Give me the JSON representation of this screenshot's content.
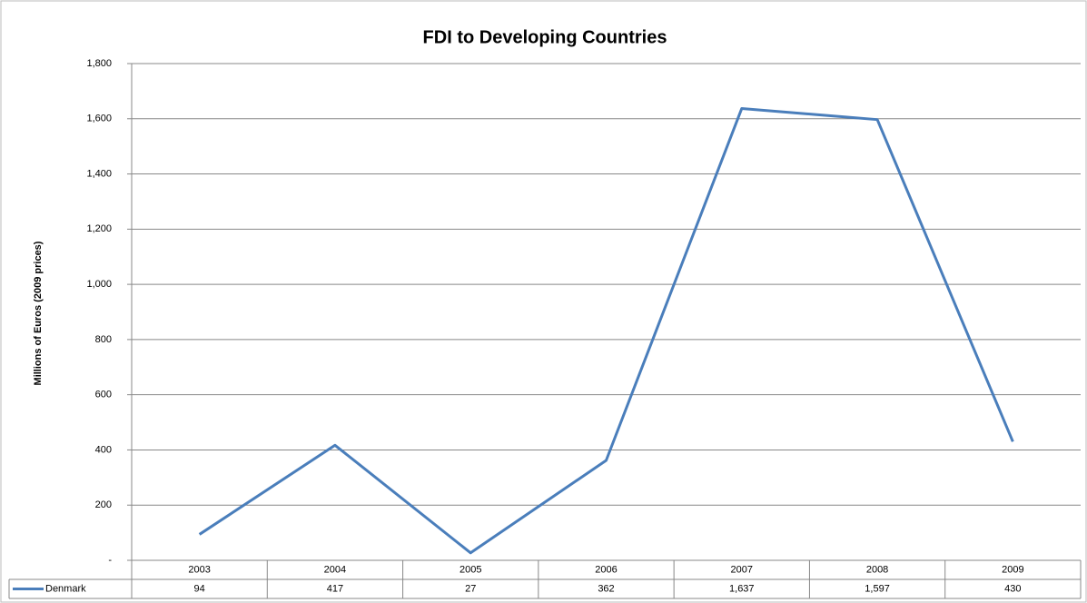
{
  "chart_data": {
    "type": "line",
    "title": "FDI to Developing Countries",
    "y_label": "Millions of Euros (2009 prices)",
    "categories": [
      "2003",
      "2004",
      "2005",
      "2006",
      "2007",
      "2008",
      "2009"
    ],
    "series": [
      {
        "name": "Denmark",
        "color": "#4a7ebb",
        "values": [
          94,
          417,
          27,
          362,
          1637,
          1597,
          430
        ],
        "value_labels": [
          "94",
          "417",
          "27",
          "362",
          "1,637",
          "1,597",
          "430"
        ]
      }
    ],
    "ylim": [
      0,
      1800
    ],
    "yticks": [
      {
        "value": 0,
        "label": "-"
      },
      200,
      400,
      600,
      800,
      {
        "value": 1000,
        "label": "1,000"
      },
      {
        "value": 1200,
        "label": "1,200"
      },
      {
        "value": 1400,
        "label": "1,400"
      },
      {
        "value": 1600,
        "label": "1,600"
      },
      {
        "value": 1800,
        "label": "1,800"
      }
    ],
    "grid": true,
    "data_table": true
  }
}
